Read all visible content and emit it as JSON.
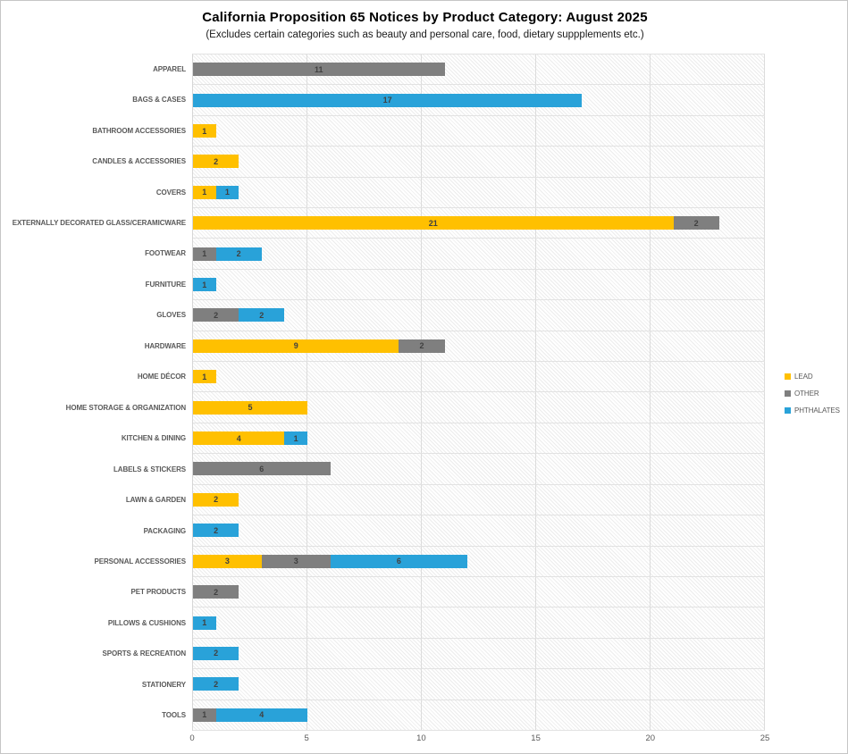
{
  "title": "California Proposition 65 Notices by Product Category: August 2025",
  "subtitle": "(Excludes certain categories such as beauty and personal care, food, dietary suppplements etc.)",
  "legend": {
    "position": "right",
    "items": [
      {
        "label": "LEAD",
        "color": "#FFC000"
      },
      {
        "label": "OTHER",
        "color": "#7F7F7F"
      },
      {
        "label": "PHTHALATES",
        "color": "#29A2D9"
      }
    ]
  },
  "axis": {
    "ticks": [
      "0",
      "5",
      "10",
      "15",
      "20",
      "25"
    ],
    "min": 0,
    "max": 25
  },
  "colors": {
    "lead": "#FFC000",
    "other": "#7F7F7F",
    "phthalates": "#29A2D9",
    "data_label": "#404040",
    "category_label": "#595959",
    "gridline": "#dcdcdc"
  },
  "chart_data": {
    "type": "bar",
    "orientation": "horizontal",
    "stacked": true,
    "grid": true,
    "legend_position": "right",
    "title": "California Proposition 65 Notices by Product Category: August 2025",
    "subtitle": "(Excludes certain categories such as beauty and personal care, food, dietary suppplements etc.)",
    "xlabel": "",
    "ylabel": "",
    "xlim": [
      0,
      25
    ],
    "xticks": [
      0,
      5,
      10,
      15,
      20,
      25
    ],
    "categories": [
      "APPAREL",
      "BAGS & CASES",
      "BATHROOM ACCESSORIES",
      "CANDLES & ACCESSORIES",
      "COVERS",
      "EXTERNALLY DECORATED GLASS/CERAMICWARE",
      "FOOTWEAR",
      "FURNITURE",
      "GLOVES",
      "HARDWARE",
      "HOME DÉCOR",
      "HOME STORAGE & ORGANIZATION",
      "KITCHEN & DINING",
      "LABELS & STICKERS",
      "LAWN & GARDEN",
      "PACKAGING",
      "PERSONAL ACCESSORIES",
      "PET PRODUCTS",
      "PILLOWS & CUSHIONS",
      "SPORTS & RECREATION",
      "STATIONERY",
      "TOOLS"
    ],
    "series": [
      {
        "name": "LEAD",
        "color": "#FFC000",
        "values": [
          0,
          0,
          1,
          2,
          1,
          21,
          0,
          0,
          0,
          9,
          1,
          5,
          4,
          0,
          2,
          0,
          3,
          0,
          0,
          0,
          0,
          0
        ]
      },
      {
        "name": "OTHER",
        "color": "#7F7F7F",
        "values": [
          11,
          0,
          0,
          0,
          0,
          2,
          1,
          0,
          2,
          2,
          0,
          0,
          0,
          6,
          0,
          0,
          3,
          2,
          0,
          0,
          0,
          1
        ]
      },
      {
        "name": "PHTHALATES",
        "color": "#29A2D9",
        "values": [
          0,
          17,
          0,
          0,
          1,
          0,
          2,
          1,
          2,
          0,
          0,
          0,
          1,
          0,
          0,
          2,
          6,
          0,
          1,
          2,
          2,
          4
        ]
      }
    ]
  }
}
